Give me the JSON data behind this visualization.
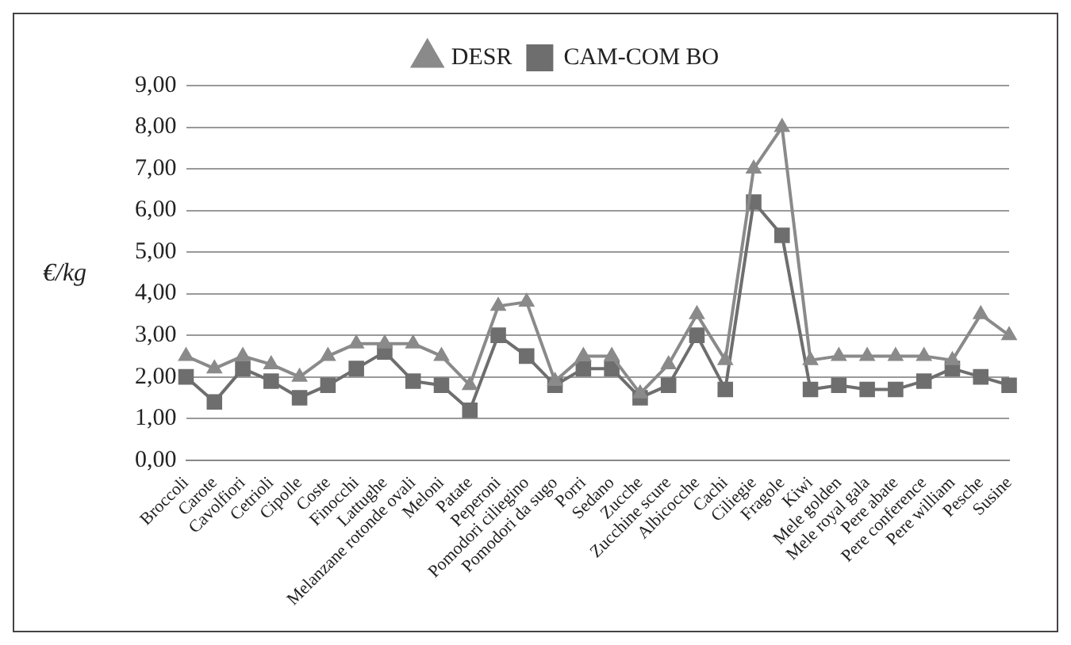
{
  "chart_data": {
    "type": "line",
    "ylabel": "€/kg",
    "categories": [
      "Broccoli",
      "Carote",
      "Cavolfiori",
      "Cetrioli",
      "Cipolle",
      "Coste",
      "Finocchi",
      "Lattughe",
      "Melanzane rotonde ovali",
      "Meloni",
      "Patate",
      "Peperoni",
      "Pomodori ciliegino",
      "Pomodori da sugo",
      "Porri",
      "Sedano",
      "Zucche",
      "Zucchine scure",
      "Albicocche",
      "Cachi",
      "Ciliegie",
      "Fragole",
      "Kiwi",
      "Mele golden",
      "Mele royal gala",
      "Pere abate",
      "Pere conference",
      "Pere william",
      "Pesche",
      "Susine"
    ],
    "series": [
      {
        "name": "DESR",
        "color": "#8a8a8a",
        "marker": "triangle",
        "values": [
          2.5,
          2.2,
          2.5,
          2.3,
          2.0,
          2.5,
          2.8,
          2.8,
          2.8,
          2.5,
          1.8,
          3.7,
          3.8,
          1.9,
          2.5,
          2.5,
          1.6,
          2.3,
          3.5,
          2.4,
          7.0,
          8.0,
          2.4,
          2.5,
          2.5,
          2.5,
          2.5,
          2.4,
          3.5,
          3.0
        ]
      },
      {
        "name": "CAM-COM BO",
        "color": "#6e6e6e",
        "marker": "square",
        "values": [
          2.0,
          1.4,
          2.2,
          1.9,
          1.5,
          1.8,
          2.2,
          2.6,
          1.9,
          1.8,
          1.2,
          3.0,
          2.5,
          1.8,
          2.2,
          2.2,
          1.5,
          1.8,
          3.0,
          1.7,
          6.2,
          5.4,
          1.7,
          1.8,
          1.7,
          1.7,
          1.9,
          2.2,
          2.0,
          1.8
        ]
      }
    ],
    "ylim": [
      0,
      9
    ],
    "yticks": [
      {
        "value": 0,
        "label": "0,00"
      },
      {
        "value": 1,
        "label": "1,00"
      },
      {
        "value": 2,
        "label": "2,00"
      },
      {
        "value": 3,
        "label": "3,00"
      },
      {
        "value": 4,
        "label": "4,00"
      },
      {
        "value": 5,
        "label": "5,00"
      },
      {
        "value": 6,
        "label": "6,00"
      },
      {
        "value": 7,
        "label": "7,00"
      },
      {
        "value": 8,
        "label": "8,00"
      },
      {
        "value": 9,
        "label": "9,00"
      }
    ],
    "grid": "y",
    "legend": "top",
    "line_style": "solid"
  }
}
